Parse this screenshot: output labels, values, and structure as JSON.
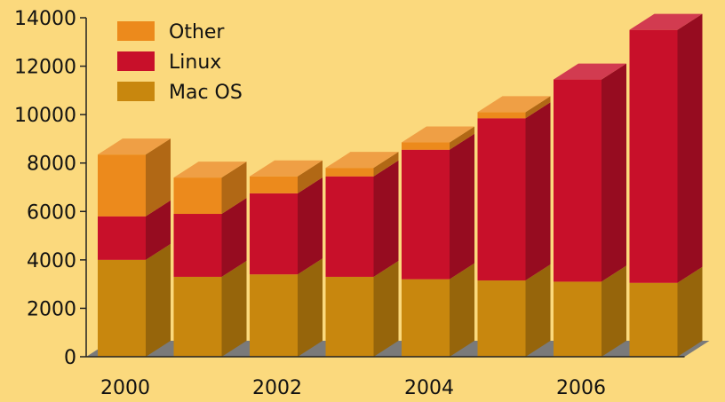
{
  "chart_data": {
    "type": "bar",
    "stacked": true,
    "categories": [
      "2000",
      "2001",
      "2002",
      "2003",
      "2004",
      "2005",
      "2006",
      "2007"
    ],
    "x_tick_labels": [
      "2000",
      "2002",
      "2004",
      "2006"
    ],
    "series": [
      {
        "name": "Mac OS",
        "values": [
          4000,
          3300,
          3400,
          3300,
          3200,
          3150,
          3100,
          3050
        ]
      },
      {
        "name": "Linux",
        "values": [
          1800,
          2600,
          3350,
          4150,
          5350,
          6700,
          8350,
          10450
        ]
      },
      {
        "name": "Other",
        "values": [
          2550,
          1500,
          700,
          350,
          300,
          250,
          0,
          0
        ]
      }
    ],
    "legend_order": [
      "Other",
      "Linux",
      "Mac OS"
    ],
    "ylim": [
      0,
      14000
    ],
    "y_ticks": [
      0,
      2000,
      4000,
      6000,
      8000,
      10000,
      12000,
      14000
    ],
    "colors": {
      "Mac OS": "#c8870e",
      "Linux": "#c8102a",
      "Other": "#ec8a1c"
    },
    "grid": false,
    "legend_position": "top-left",
    "background": "#fbd97d"
  }
}
